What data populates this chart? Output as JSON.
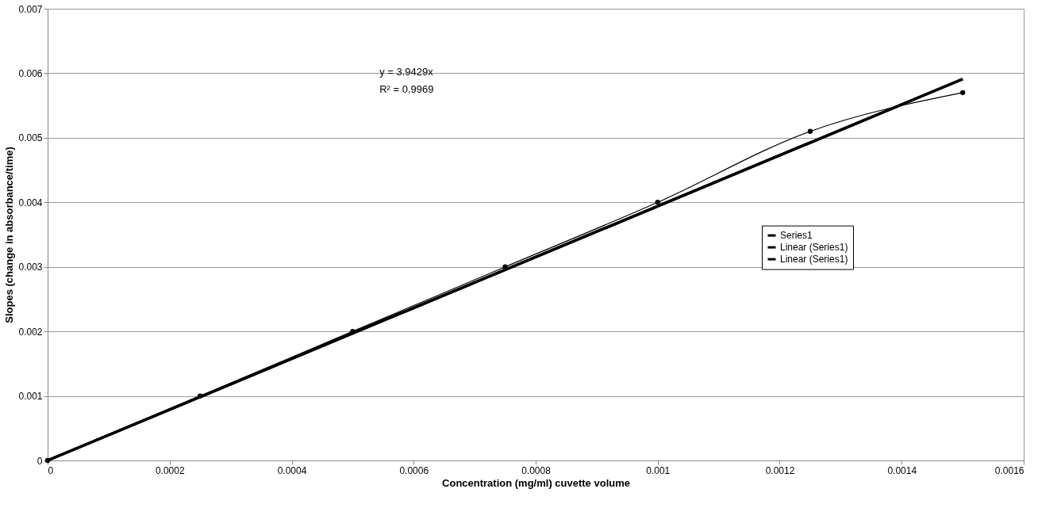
{
  "chart_data": {
    "type": "line",
    "xlabel": "Concentration (mg/ml) cuvette volume",
    "ylabel": "Slopes (change in absorbance/time)",
    "annotations": [
      "y = 3.9429x",
      "R² = 0.9969"
    ],
    "series": [
      {
        "name": "Series1",
        "color": "#000000",
        "marker": "circle",
        "x": [
          0,
          0.00025,
          0.0005,
          0.00075,
          0.001,
          0.00125,
          0.0015
        ],
        "values": [
          0,
          0.001,
          0.002,
          0.003,
          0.004,
          0.0051,
          0.0057
        ]
      },
      {
        "name": "Linear (Series1)",
        "color": "#000000",
        "marker": "none",
        "x": [
          0,
          0.0015
        ],
        "values": [
          0,
          0.00591
        ]
      },
      {
        "name": "Linear (Series1)",
        "color": "#000000",
        "marker": "none",
        "x": [
          0,
          0.0015
        ],
        "values": [
          0,
          0.00591
        ]
      }
    ],
    "xlim": [
      0,
      0.0016
    ],
    "xticks": [
      0,
      0.0002,
      0.0004,
      0.0006,
      0.0008,
      0.001,
      0.0012,
      0.0014,
      0.0016
    ],
    "ylim": [
      0,
      0.007
    ],
    "yticks": [
      0,
      0.001,
      0.002,
      0.003,
      0.004,
      0.005,
      0.006,
      0.007
    ],
    "grid": "y",
    "legend": "right"
  }
}
